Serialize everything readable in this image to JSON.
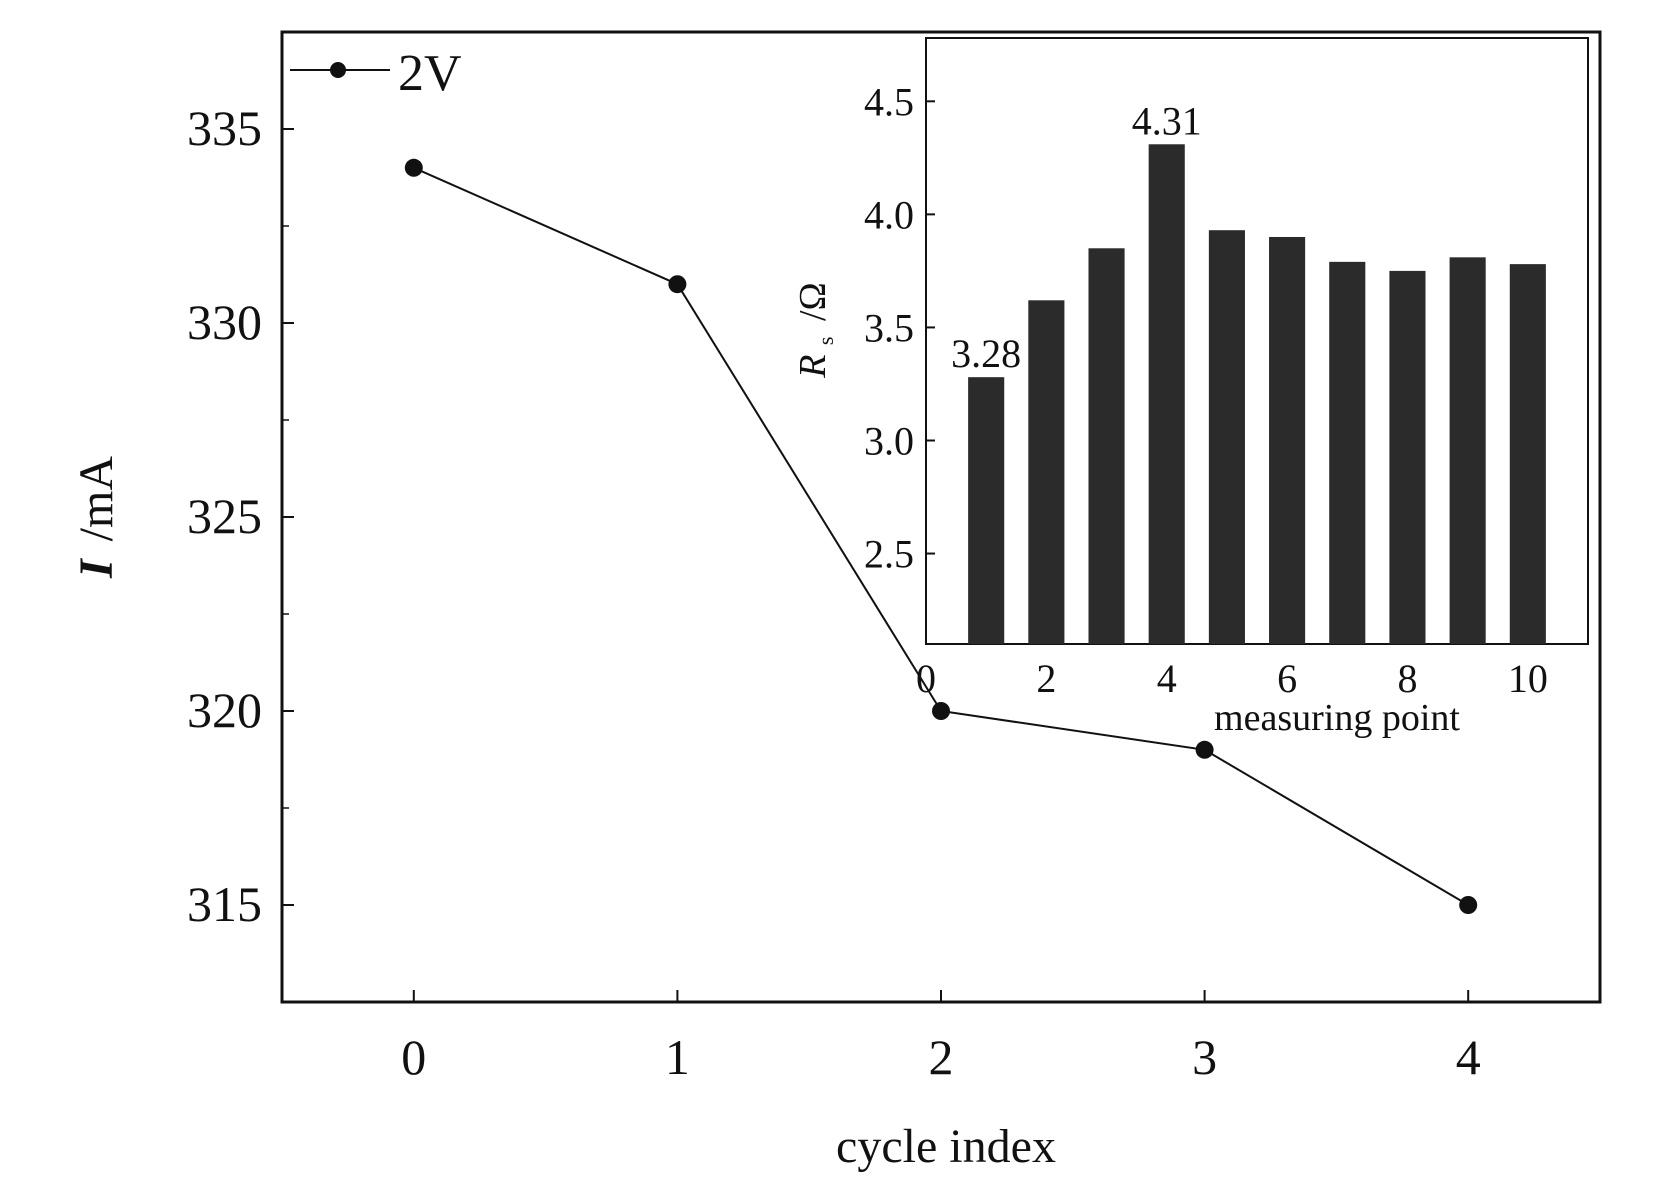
{
  "chart_data": [
    {
      "type": "line",
      "xlabel": "cycle index",
      "ylabel_main": "I",
      "ylabel_unit": "/mA",
      "x": [
        0,
        1,
        2,
        3,
        4
      ],
      "x_ticks": [
        "0",
        "1",
        "2",
        "3",
        "4"
      ],
      "xlim": [
        -0.5,
        4.5
      ],
      "y_ticks": [
        "315",
        "320",
        "325",
        "330",
        "335"
      ],
      "ylim": [
        312.5,
        337.5
      ],
      "series": [
        {
          "name": "2V",
          "values": [
            334,
            331,
            320,
            319,
            315
          ]
        }
      ],
      "legend": {
        "label": "2V",
        "placement": "top-left"
      },
      "colors": {
        "line": "#111111",
        "marker": "#111111"
      }
    },
    {
      "type": "bar",
      "placement": "inset-top-right",
      "xlabel": "measuring point",
      "ylabel_main": "R",
      "ylabel_sub": "s",
      "ylabel_unit": "/Ω",
      "categories": [
        1,
        2,
        3,
        4,
        5,
        6,
        7,
        8,
        9,
        10
      ],
      "values": [
        3.28,
        3.62,
        3.85,
        4.31,
        3.93,
        3.9,
        3.79,
        3.75,
        3.81,
        3.78
      ],
      "x_ticks": [
        "0",
        "2",
        "4",
        "6",
        "8",
        "10"
      ],
      "xlim": [
        0,
        11
      ],
      "y_ticks": [
        "2.5",
        "3.0",
        "3.5",
        "4.0",
        "4.5"
      ],
      "ylim": [
        2.1,
        4.78
      ],
      "annotations": [
        {
          "category": 1,
          "text": "3.28"
        },
        {
          "category": 4,
          "text": "4.31"
        }
      ],
      "colors": {
        "bar": "#2b2b2b"
      }
    }
  ]
}
